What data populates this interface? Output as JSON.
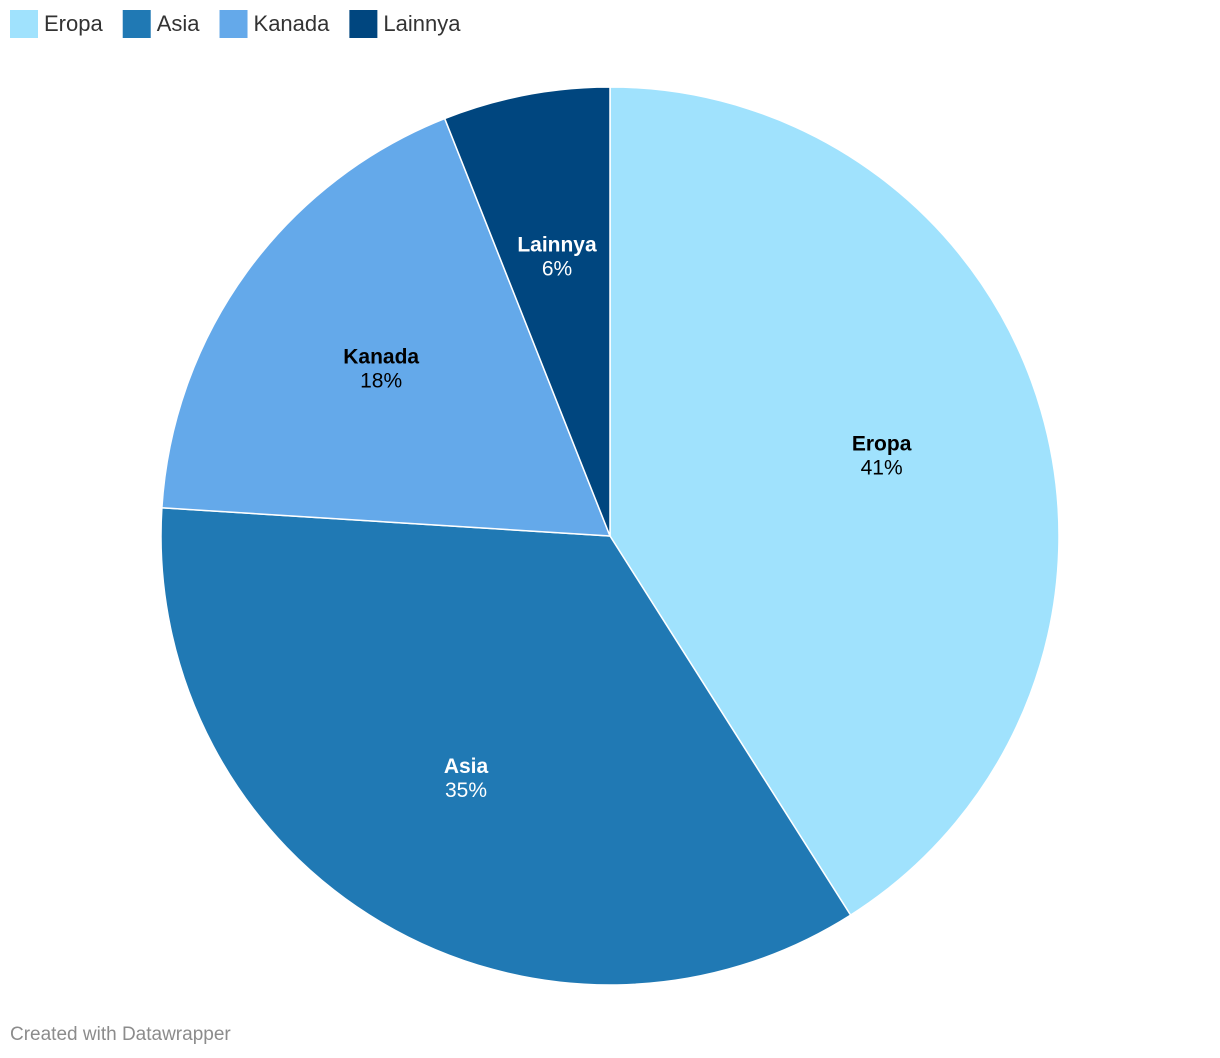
{
  "chart_data": {
    "type": "pie",
    "categories": [
      "Eropa",
      "Asia",
      "Kanada",
      "Lainnya"
    ],
    "values": [
      41,
      35,
      18,
      6
    ],
    "value_labels": [
      "41%",
      "35%",
      "18%",
      "6%"
    ],
    "colors": [
      "#a0e2fd",
      "#2079b4",
      "#64a9ea",
      "#00467f"
    ],
    "legend": "top-left",
    "credit": "Created with Datawrapper"
  }
}
